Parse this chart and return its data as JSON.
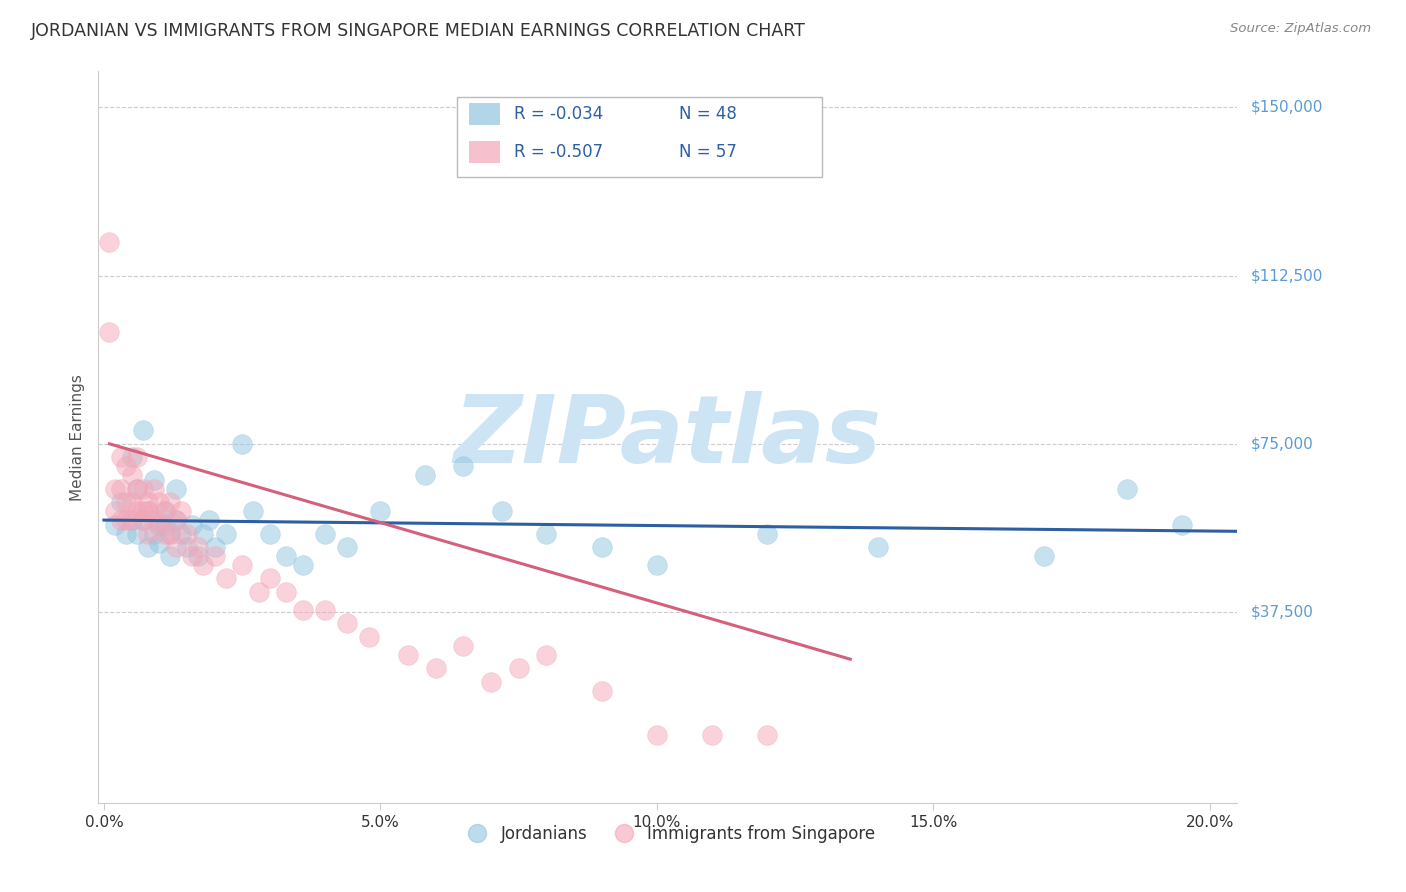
{
  "title": "JORDANIAN VS IMMIGRANTS FROM SINGAPORE MEDIAN EARNINGS CORRELATION CHART",
  "source": "Source: ZipAtlas.com",
  "xlabel_ticks": [
    "0.0%",
    "5.0%",
    "10.0%",
    "15.0%",
    "20.0%"
  ],
  "xlabel_tick_vals": [
    0.0,
    0.05,
    0.1,
    0.15,
    0.2
  ],
  "ylabel": "Median Earnings",
  "ylabel_ticks": [
    "$150,000",
    "$112,500",
    "$75,000",
    "$37,500"
  ],
  "ylabel_tick_vals": [
    150000,
    112500,
    75000,
    37500
  ],
  "ylim": [
    -5000,
    158000
  ],
  "xlim": [
    -0.001,
    0.205
  ],
  "watermark": "ZIPatlas",
  "legend_entries": [
    {
      "label": "Jordanians",
      "color": "#92c5de",
      "R": "-0.034",
      "N": "48"
    },
    {
      "label": "Immigrants from Singapore",
      "color": "#f4a6b8",
      "R": "-0.507",
      "N": "57"
    }
  ],
  "blue_scatter_x": [
    0.002,
    0.003,
    0.004,
    0.005,
    0.005,
    0.006,
    0.006,
    0.007,
    0.007,
    0.008,
    0.008,
    0.009,
    0.009,
    0.01,
    0.01,
    0.011,
    0.011,
    0.012,
    0.012,
    0.013,
    0.013,
    0.014,
    0.015,
    0.016,
    0.017,
    0.018,
    0.019,
    0.02,
    0.022,
    0.025,
    0.027,
    0.03,
    0.033,
    0.036,
    0.04,
    0.044,
    0.05,
    0.058,
    0.065,
    0.072,
    0.08,
    0.09,
    0.1,
    0.12,
    0.14,
    0.17,
    0.185,
    0.195
  ],
  "blue_scatter_y": [
    57000,
    62000,
    55000,
    72000,
    58000,
    65000,
    55000,
    78000,
    58000,
    60000,
    52000,
    67000,
    55000,
    57000,
    53000,
    60000,
    57000,
    55000,
    50000,
    58000,
    65000,
    55000,
    52000,
    57000,
    50000,
    55000,
    58000,
    52000,
    55000,
    75000,
    60000,
    55000,
    50000,
    48000,
    55000,
    52000,
    60000,
    68000,
    70000,
    60000,
    55000,
    52000,
    48000,
    55000,
    52000,
    50000,
    65000,
    57000
  ],
  "pink_scatter_x": [
    0.001,
    0.001,
    0.002,
    0.002,
    0.003,
    0.003,
    0.003,
    0.004,
    0.004,
    0.004,
    0.005,
    0.005,
    0.005,
    0.006,
    0.006,
    0.006,
    0.007,
    0.007,
    0.007,
    0.008,
    0.008,
    0.008,
    0.009,
    0.009,
    0.01,
    0.01,
    0.011,
    0.011,
    0.012,
    0.012,
    0.013,
    0.013,
    0.014,
    0.015,
    0.016,
    0.017,
    0.018,
    0.02,
    0.022,
    0.025,
    0.028,
    0.03,
    0.033,
    0.036,
    0.04,
    0.044,
    0.048,
    0.055,
    0.06,
    0.065,
    0.07,
    0.075,
    0.08,
    0.09,
    0.1,
    0.11,
    0.12
  ],
  "pink_scatter_y": [
    120000,
    100000,
    65000,
    60000,
    72000,
    65000,
    58000,
    70000,
    62000,
    58000,
    68000,
    62000,
    58000,
    72000,
    65000,
    60000,
    65000,
    60000,
    58000,
    62000,
    60000,
    55000,
    65000,
    58000,
    62000,
    58000,
    55000,
    60000,
    62000,
    55000,
    58000,
    52000,
    60000,
    55000,
    50000,
    52000,
    48000,
    50000,
    45000,
    48000,
    42000,
    45000,
    42000,
    38000,
    38000,
    35000,
    32000,
    28000,
    25000,
    30000,
    22000,
    25000,
    28000,
    20000,
    10000,
    10000,
    10000
  ],
  "blue_line_x": [
    0.0,
    0.205
  ],
  "blue_line_y": [
    58000,
    55500
  ],
  "pink_line_x": [
    0.001,
    0.135
  ],
  "pink_line_y": [
    75000,
    27000
  ],
  "bg_color": "#ffffff",
  "grid_color": "#cccccc",
  "title_color": "#333333",
  "axis_label_color": "#555555",
  "right_label_color": "#5b9bd5",
  "scatter_blue": "#92c5de",
  "scatter_pink": "#f4a6b8",
  "line_blue": "#2e5fa3",
  "line_pink": "#d4607a",
  "legend_text_color": "#2e5fa3",
  "watermark_color": "#cde4f5"
}
